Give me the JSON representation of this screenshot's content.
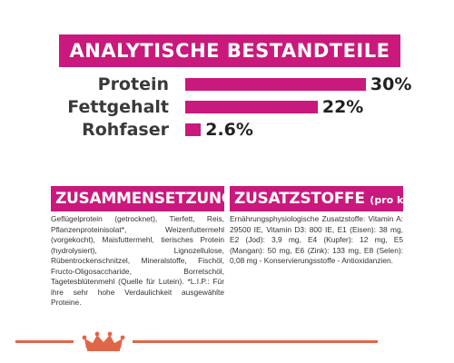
{
  "analysis": {
    "title": "ANALYTISCHE BESTANDTEILE",
    "rows": [
      {
        "label": "Protein",
        "value": "30%",
        "percent": 30
      },
      {
        "label": "Fettgehalt",
        "value": "22%",
        "percent": 22
      },
      {
        "label": "Rohfaser",
        "value": "2.6%",
        "percent": 2.6
      }
    ]
  },
  "composition": {
    "title": "ZUSAMMENSETZUNG",
    "text": "Geflügelprotein (getrocknet), Tierfett, Reis, Pflanzenproteinisolat*, Weizenfuttermehl (vorgekocht), Maisfuttermehl, tierisches Protein (hydrolysiert), Lignozellulose, Rübentrockenschnitzel, Mineralstoffe, Fischöl, Fructo-Oligosaccharide, Borretschöl, Tagetesblütenmehl (Quelle für Lutein). *L.I.P.: Für ihre sehr hohe Verdaulichkeit ausgewählte Proteine."
  },
  "additives": {
    "title": "ZUSATZSTOFFE",
    "title_suffix": "(pro kg)",
    "text": "Ernährungsphysiologische Zusatzstoffe: Vitamin A: 29500 IE, Vitamin D3: 800 IE, E1 (Eisen): 38 mg, E2 (Jod): 3,9 mg, E4 (Kupfer): 12 mg, E5 (Mangan): 50 mg, E6 (Zink): 133 mg, E8 (Selen): 0,08 mg - Konservierungsstoffe - Antioxidanzien."
  },
  "colors": {
    "accent": "#c9197c",
    "footer": "#e0664a"
  },
  "icons": {
    "logo": "royal-canin-crown-icon"
  }
}
